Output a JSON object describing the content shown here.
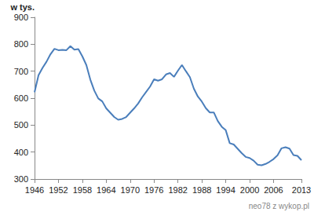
{
  "chart_data": {
    "type": "line",
    "y_label": "w tys.",
    "annotation": "neo78 z wykop.pl",
    "color": "#4a7ebb",
    "grid": false,
    "x": [
      1946,
      1947,
      1948,
      1949,
      1950,
      1951,
      1952,
      1953,
      1954,
      1955,
      1956,
      1957,
      1958,
      1959,
      1960,
      1961,
      1962,
      1963,
      1964,
      1965,
      1966,
      1967,
      1968,
      1969,
      1970,
      1971,
      1972,
      1973,
      1974,
      1975,
      1976,
      1977,
      1978,
      1979,
      1980,
      1981,
      1982,
      1983,
      1984,
      1985,
      1986,
      1987,
      1988,
      1989,
      1990,
      1991,
      1992,
      1993,
      1994,
      1995,
      1996,
      1997,
      1998,
      1999,
      2000,
      2001,
      2002,
      2003,
      2004,
      2005,
      2006,
      2007,
      2008,
      2009,
      2010,
      2011,
      2012,
      2013
    ],
    "values": [
      622,
      685,
      712,
      735,
      763,
      783,
      778,
      779,
      778,
      793,
      780,
      782,
      755,
      723,
      669,
      628,
      599,
      588,
      562,
      546,
      530,
      520,
      523,
      530,
      546,
      562,
      580,
      603,
      623,
      643,
      670,
      665,
      670,
      688,
      693,
      679,
      702,
      723,
      700,
      678,
      635,
      606,
      587,
      563,
      547,
      547,
      515,
      494,
      481,
      433,
      428,
      412,
      396,
      382,
      378,
      368,
      353,
      351,
      356,
      364,
      374,
      388,
      414,
      418,
      413,
      389,
      386,
      370
    ],
    "xlim": [
      1946,
      2013
    ],
    "xticks": [
      1946,
      1952,
      1958,
      1964,
      1970,
      1976,
      1982,
      1988,
      1994,
      2000,
      2006,
      2013
    ],
    "ylim": [
      300,
      900
    ],
    "yticks": [
      300,
      400,
      500,
      600,
      700,
      800,
      900
    ]
  }
}
